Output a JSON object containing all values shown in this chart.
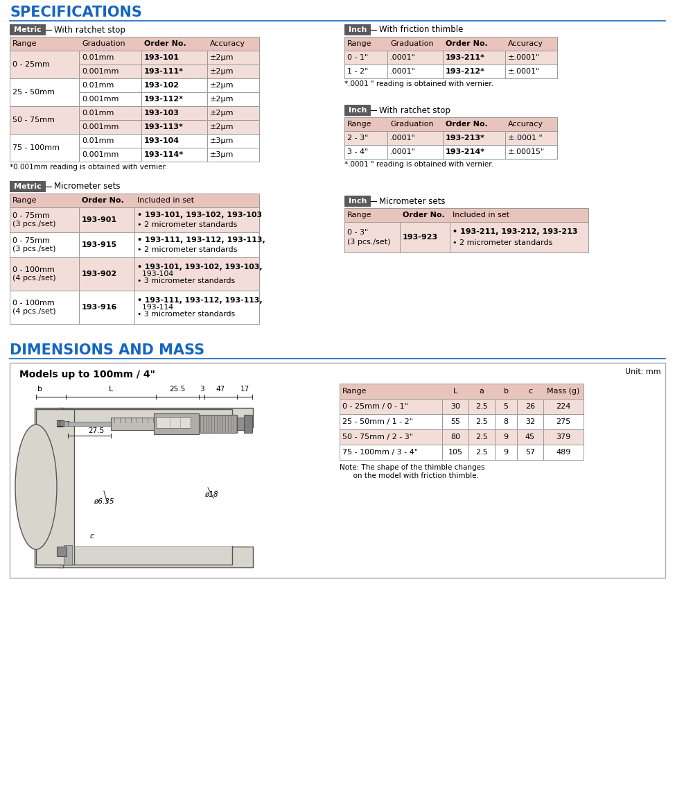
{
  "title_specs": "SPECIFICATIONS",
  "title_dims": "DIMENSIONS AND MASS",
  "title_color": "#1565c0",
  "row_bg_pink": "#f2ddd8",
  "row_bg_white": "#ffffff",
  "header_bg": "#e8c4bc",
  "table_border": "#999999",
  "label_bg": "#5a5a5a",
  "label_fg": "#ffffff",
  "line_color": "#1565c0",
  "metric_ratchet_headers": [
    "Range",
    "Graduation",
    "Order No.",
    "Accuracy"
  ],
  "metric_ratchet_rows": [
    [
      "0 - 25mm",
      "0.01mm",
      "193-101",
      "±2μm"
    ],
    [
      "",
      "0.001mm",
      "193-111*",
      "±2μm"
    ],
    [
      "25 - 50mm",
      "0.01mm",
      "193-102",
      "±2μm"
    ],
    [
      "",
      "0.001mm",
      "193-112*",
      "±2μm"
    ],
    [
      "50 - 75mm",
      "0.01mm",
      "193-103",
      "±2μm"
    ],
    [
      "",
      "0.001mm",
      "193-113*",
      "±2μm"
    ],
    [
      "75 - 100mm",
      "0.01mm",
      "193-104",
      "±3μm"
    ],
    [
      "",
      "0.001mm",
      "193-114*",
      "±3μm"
    ]
  ],
  "metric_ratchet_footnote": "*0.001mm reading is obtained with vernier.",
  "inch_friction_headers": [
    "Range",
    "Graduation",
    "Order No.",
    "Accuracy"
  ],
  "inch_friction_rows": [
    [
      "0 - 1\"",
      ".0001\"",
      "193-211*",
      "±.0001\""
    ],
    [
      "1 - 2\"",
      ".0001\"",
      "193-212*",
      "±.0001\""
    ]
  ],
  "inch_friction_footnote": "*.0001 \" reading is obtained with vernier.",
  "inch_ratchet_headers": [
    "Range",
    "Graduation",
    "Order No.",
    "Accuracy"
  ],
  "inch_ratchet_rows": [
    [
      "2 - 3\"",
      ".0001\"",
      "193-213*",
      "±.0001 \""
    ],
    [
      "3 - 4\"",
      ".0001\"",
      "193-214*",
      "±.00015\""
    ]
  ],
  "inch_ratchet_footnote": "*.0001 \" reading is obtained with vernier.",
  "metric_sets_headers": [
    "Range",
    "Order No.",
    "Included in set"
  ],
  "metric_sets_rows": [
    [
      "0 - 75mm\n(3 pcs./set)",
      "193-901",
      "• 193-101, 193-102, 193-103\n• 2 micrometer standards"
    ],
    [
      "0 - 75mm\n(3 pcs./set)",
      "193-915",
      "• 193-111, 193-112, 193-113,\n• 2 micrometer standards"
    ],
    [
      "0 - 100mm\n(4 pcs./set)",
      "193-902",
      "• 193-101, 193-102, 193-103,\n  193-104\n• 3 micrometer standards"
    ],
    [
      "0 - 100mm\n(4 pcs./set)",
      "193-916",
      "• 193-111, 193-112, 193-113,\n  193-114\n• 3 micrometer standards"
    ]
  ],
  "inch_sets_headers": [
    "Range",
    "Order No.",
    "Included in set"
  ],
  "inch_sets_rows": [
    [
      "0 - 3\"\n(3 pcs./set)",
      "193-923",
      "• 193-211, 193-212, 193-213\n• 2 micrometer standards"
    ]
  ],
  "dim_headers": [
    "Range",
    "L",
    "a",
    "b",
    "c",
    "Mass (g)"
  ],
  "dim_rows": [
    [
      "0 - 25mm / 0 - 1\"",
      "30",
      "2.5",
      "5",
      "26",
      "224"
    ],
    [
      "25 - 50mm / 1 - 2\"",
      "55",
      "2.5",
      "8",
      "32",
      "275"
    ],
    [
      "50 - 75mm / 2 - 3\"",
      "80",
      "2.5",
      "9",
      "45",
      "379"
    ],
    [
      "75 - 100mm / 3 - 4\"",
      "105",
      "2.5",
      "9",
      "57",
      "489"
    ]
  ],
  "dim_note": "Note: The shape of the thimble changes\n      on the model with friction thimble.",
  "dim_unit": "Unit: mm",
  "dim_model": "Models up to 100mm / 4\""
}
